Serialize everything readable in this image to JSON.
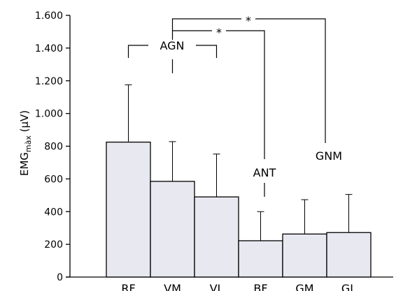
{
  "chart_data": {
    "type": "bar",
    "categories": [
      "RF",
      "VM",
      "VL",
      "BF",
      "GM",
      "GL"
    ],
    "values": [
      825,
      585,
      490,
      222,
      263,
      272
    ],
    "errors": [
      350,
      243,
      262,
      178,
      210,
      233
    ],
    "ylabel": "EMG",
    "ylabel_sub": "màx",
    "ylabel_unit": " (µV)",
    "ylim": [
      0,
      1600
    ],
    "yticks": [
      0,
      200,
      400,
      600,
      800,
      1000,
      1200,
      1400,
      1600
    ],
    "ytick_labels": [
      "0",
      "200",
      "400",
      "600",
      "800",
      "1.000",
      "1.200",
      "1.400",
      "1.600"
    ],
    "bar_color": "#e8e8f0",
    "groups": {
      "agn": "AGN",
      "ant": "ANT",
      "gnm": "GNM"
    },
    "significance": [
      "*",
      "*"
    ]
  }
}
